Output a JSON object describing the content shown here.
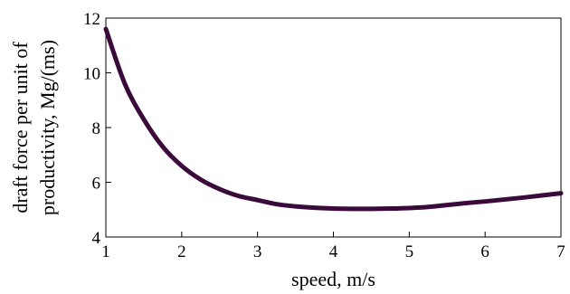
{
  "chart_data": {
    "type": "line",
    "title": "",
    "xlabel": "speed, m/s",
    "ylabel_lines": [
      "draft force per unit of",
      "productivity, Mg/(ms)"
    ],
    "xlim": [
      1,
      7
    ],
    "ylim": [
      4,
      12
    ],
    "x_ticks": [
      1,
      2,
      3,
      4,
      5,
      6,
      7
    ],
    "y_ticks": [
      4,
      6,
      8,
      10,
      12
    ],
    "grid": false,
    "series": [
      {
        "color": "#3a0a3a",
        "x": [
          1.0,
          1.25,
          1.5,
          1.75,
          2.0,
          2.25,
          2.5,
          2.75,
          3.0,
          3.25,
          3.5,
          3.75,
          4.0,
          4.25,
          4.5,
          4.75,
          5.0,
          5.25,
          5.5,
          5.75,
          6.0,
          6.25,
          6.5,
          6.75,
          7.0
        ],
        "y": [
          11.6,
          9.6,
          8.3,
          7.3,
          6.6,
          6.1,
          5.75,
          5.5,
          5.35,
          5.2,
          5.12,
          5.07,
          5.04,
          5.03,
          5.03,
          5.04,
          5.06,
          5.1,
          5.17,
          5.24,
          5.3,
          5.37,
          5.44,
          5.52,
          5.6
        ]
      }
    ]
  }
}
